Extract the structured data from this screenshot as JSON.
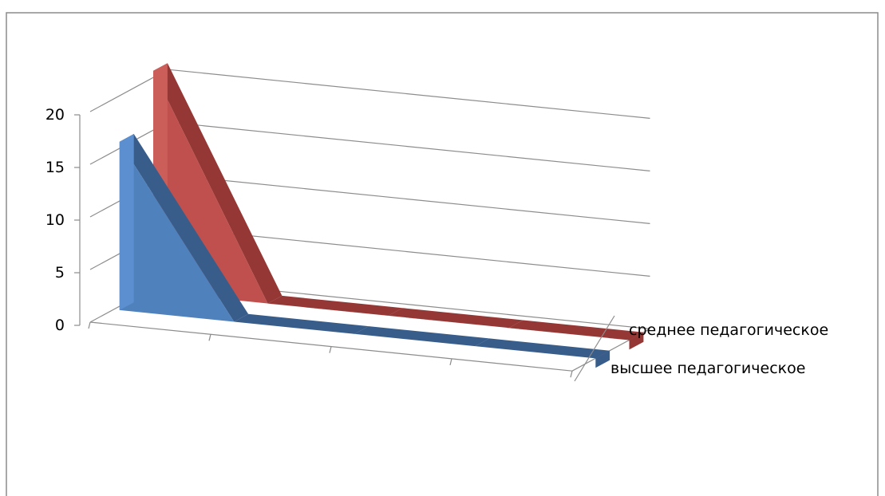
{
  "chart_data": {
    "type": "area",
    "title": "",
    "xlabel": "",
    "ylabel": "",
    "ylim": [
      0,
      20
    ],
    "yticks": [
      0,
      5,
      10,
      15,
      20
    ],
    "y_tick_labels": [
      "0",
      "5",
      "10",
      "15",
      "20"
    ],
    "categories": [
      "",
      "",
      "",
      ""
    ],
    "grid": true,
    "legend_placement": "right",
    "series": [
      {
        "name": "высшее педагогическое",
        "values": [
          16,
          0,
          0,
          0
        ]
      },
      {
        "name": "среднее педагогическое",
        "values": [
          21,
          0,
          0,
          0
        ]
      }
    ]
  },
  "colors": {
    "series": [
      "#4F81BD",
      "#C0504D"
    ],
    "series_dark": [
      "#385D8A",
      "#953735"
    ],
    "series_light": [
      "#5B8FD0",
      "#CC5E5A"
    ],
    "grid": "#8C8C8C",
    "frame": "#8C8C8C",
    "floor": "#ffffff"
  }
}
